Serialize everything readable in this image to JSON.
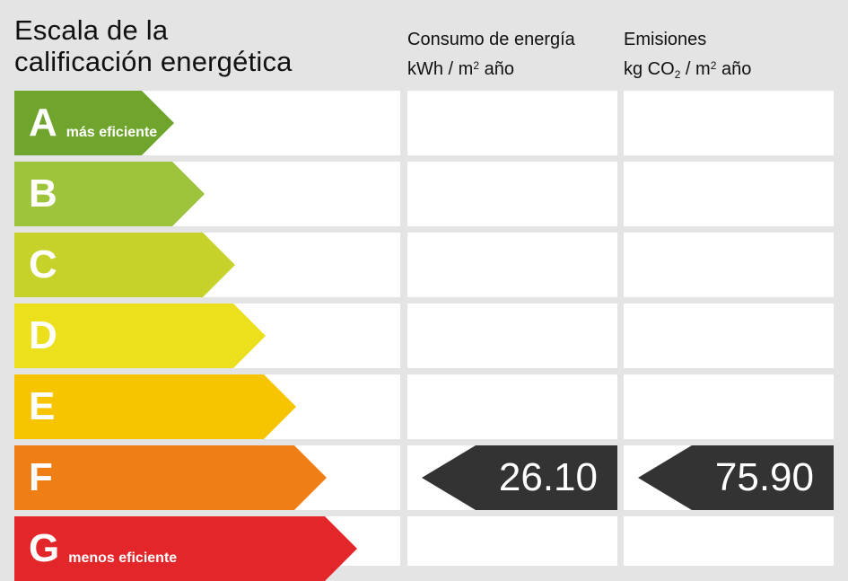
{
  "title_line1": "Escala de la",
  "title_line2": "calificación energética",
  "columns": {
    "consumo": {
      "line1": "Consumo de energía",
      "unit_a": "kWh / m",
      "unit_sup": "2",
      "unit_b": " año"
    },
    "emisiones": {
      "line1": "Emisiones",
      "unit_a": "kg CO",
      "unit_sub": "2",
      "unit_mid": " / m",
      "unit_sup": "2",
      "unit_b": " año"
    }
  },
  "scale": [
    {
      "letter": "A",
      "note": "más eficiente",
      "color": "#6fa52d"
    },
    {
      "letter": "B",
      "note": "",
      "color": "#9dc43a"
    },
    {
      "letter": "C",
      "note": "",
      "color": "#c6d22a"
    },
    {
      "letter": "D",
      "note": "",
      "color": "#ece01c"
    },
    {
      "letter": "E",
      "note": "",
      "color": "#f7c500"
    },
    {
      "letter": "F",
      "note": "",
      "color": "#ef7f15"
    },
    {
      "letter": "G",
      "note": "menos eficiente",
      "color": "#e3262a"
    }
  ],
  "rating": {
    "letter": "F",
    "consumo_value": "26.10",
    "emisiones_value": "75.90",
    "tag_color": "#333333"
  }
}
